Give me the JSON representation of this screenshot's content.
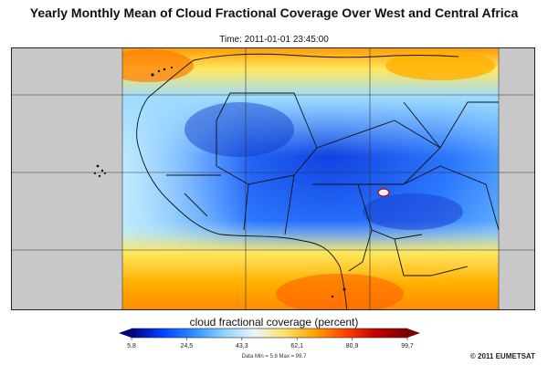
{
  "title": "Yearly Monthly Mean of Cloud Fractional Coverage Over West and Central Africa",
  "time": "Time: 2011-01-01 23:45:00",
  "colorbar": {
    "title": "cloud fractional coverage (percent)",
    "min": 5.8,
    "max": 99.7,
    "ticks": [
      "5,8",
      "24,5",
      "43,3",
      "62,1",
      "80,9",
      "99,7"
    ],
    "colors": [
      "#000080",
      "#0040ff",
      "#2a8cff",
      "#8fd0ff",
      "#eaf6ff",
      "#ffe066",
      "#ffa000",
      "#ff4000",
      "#c00000",
      "#7a0000"
    ]
  },
  "data_range": "Data Min = 5.8   Max = 99.7",
  "copyright": "© 2011 EUMETSAT",
  "map": {
    "nodata_color": "#c8c8c8",
    "grid": true
  }
}
